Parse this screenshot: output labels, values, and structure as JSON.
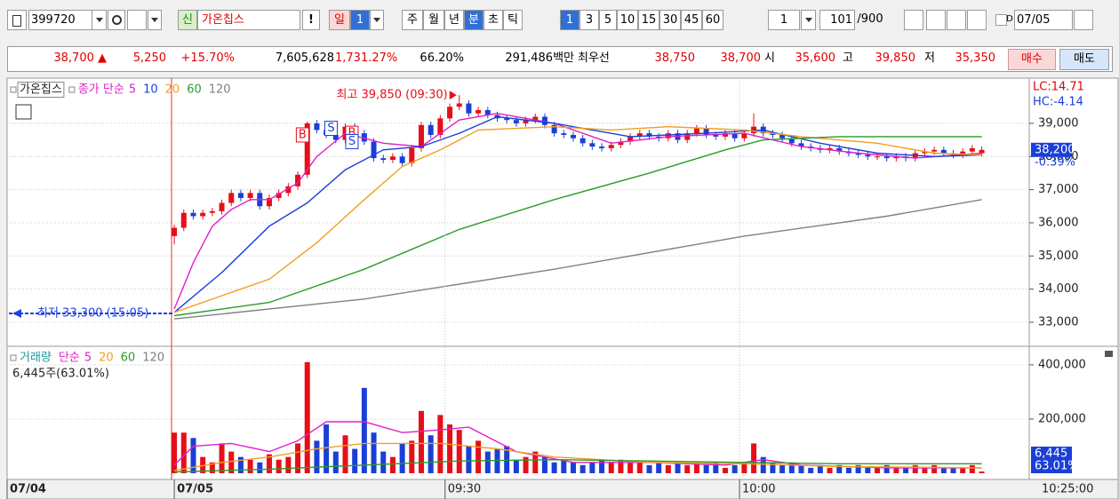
{
  "toolbar": {
    "code": "399720",
    "name_badge": "신",
    "name": "가온칩스",
    "alert": "!",
    "day": "일",
    "day_count": "1",
    "week": "주",
    "month": "월",
    "year": "년",
    "minute": "분",
    "second": "초",
    "tick": "틱",
    "minutes": [
      "1",
      "3",
      "5",
      "10",
      "15",
      "30",
      "45",
      "60"
    ],
    "count": "1",
    "shown": "101",
    "total": "/900",
    "date_flag": "D",
    "date": "07/05"
  },
  "info_bar": {
    "price": "38,700 ▲",
    "change": "5,250",
    "rate": "+15.70%",
    "volume": "7,605,628",
    "volume_rate": "1,731.27%",
    "turnover": "66.20%",
    "amount": "291,486백만",
    "best_label": "최우선",
    "ask": "38,750",
    "bid": "38,700",
    "open_label": "시",
    "open": "35,600",
    "high_label": "고",
    "high": "39,850",
    "low_label": "저",
    "low": "35,350",
    "buy": "매수",
    "sell": "매도"
  },
  "chart_data": [
    {
      "type": "candlestick",
      "title": "가온칩스",
      "legend_title": "종가 단순",
      "up_color": "#e60f19",
      "down_color": "#1a3fd6",
      "open": [
        35600,
        35850,
        36300,
        36200,
        36300,
        36350,
        36600,
        36900,
        36750,
        36900,
        36500,
        36750,
        36900,
        37100,
        37450,
        39000,
        38800,
        38650,
        38500,
        38900,
        38700,
        38450,
        37950,
        37900,
        38000,
        37800,
        38250,
        38950,
        38650,
        39150,
        39500,
        39600,
        39300,
        39400,
        39250,
        39150,
        39100,
        39000,
        39100,
        39200,
        38950,
        38700,
        38650,
        38550,
        38400,
        38300,
        38250,
        38350,
        38450,
        38600,
        38700,
        38600,
        38550,
        38700,
        38500,
        38700,
        38850,
        38650,
        38600,
        38700,
        38550,
        38700,
        38900,
        38700,
        38650,
        38550,
        38400,
        38300,
        38250,
        38200,
        38250,
        38150,
        38100,
        38050,
        38000,
        38000,
        37950,
        38000,
        37950,
        38100,
        38150,
        38200,
        38100,
        38050,
        38150,
        38100
      ],
      "high": [
        35950,
        36400,
        36400,
        36400,
        36450,
        36700,
        37000,
        37000,
        37000,
        37000,
        36850,
        37000,
        37200,
        37550,
        39050,
        39100,
        38900,
        38750,
        39000,
        39000,
        38800,
        38550,
        38050,
        38100,
        38100,
        38350,
        39050,
        39050,
        39250,
        39600,
        39850,
        39700,
        39500,
        39500,
        39350,
        39250,
        39200,
        39200,
        39300,
        39300,
        39050,
        38800,
        38750,
        38650,
        38500,
        38400,
        38450,
        38550,
        38700,
        38800,
        38800,
        38700,
        38800,
        38800,
        38800,
        38950,
        38950,
        38750,
        38800,
        38800,
        38800,
        39300,
        39000,
        38800,
        38750,
        38650,
        38500,
        38400,
        38350,
        38350,
        38350,
        38250,
        38200,
        38150,
        38100,
        38100,
        38100,
        38100,
        38200,
        38250,
        38300,
        38300,
        38200,
        38250,
        38350,
        38300
      ],
      "low": [
        35350,
        35750,
        36100,
        36100,
        36200,
        36250,
        36500,
        36650,
        36650,
        36400,
        36400,
        36650,
        36800,
        37000,
        37350,
        38700,
        38550,
        38400,
        38400,
        38600,
        38350,
        37850,
        37800,
        37800,
        37700,
        37700,
        38150,
        38550,
        38550,
        39050,
        39400,
        39200,
        39200,
        39150,
        39050,
        39000,
        38900,
        38900,
        39000,
        38850,
        38600,
        38550,
        38450,
        38300,
        38200,
        38150,
        38150,
        38250,
        38350,
        38500,
        38500,
        38450,
        38450,
        38400,
        38400,
        38600,
        38550,
        38500,
        38500,
        38450,
        38450,
        38600,
        38600,
        38550,
        38450,
        38300,
        38200,
        38150,
        38100,
        38100,
        38050,
        38000,
        37950,
        37900,
        37900,
        37850,
        37850,
        37850,
        37850,
        38000,
        38050,
        38000,
        37950,
        37950,
        38050,
        38000
      ],
      "close": [
        35850,
        36300,
        36200,
        36300,
        36350,
        36600,
        36900,
        36750,
        36900,
        36500,
        36750,
        36900,
        37100,
        37450,
        39000,
        38800,
        38650,
        38500,
        38900,
        38700,
        38450,
        37950,
        37900,
        38000,
        37800,
        38250,
        38950,
        38650,
        39150,
        39500,
        39600,
        39300,
        39400,
        39250,
        39150,
        39100,
        39000,
        39100,
        39200,
        38950,
        38700,
        38650,
        38550,
        38400,
        38300,
        38250,
        38350,
        38450,
        38600,
        38700,
        38600,
        38550,
        38700,
        38500,
        38700,
        38850,
        38650,
        38600,
        38700,
        38550,
        38700,
        38900,
        38700,
        38650,
        38550,
        38400,
        38300,
        38250,
        38200,
        38250,
        38150,
        38100,
        38050,
        38000,
        38000,
        37950,
        38000,
        37950,
        38100,
        38150,
        38200,
        38100,
        38050,
        38150,
        38250,
        38200
      ],
      "xlim": [
        -17.6,
        90
      ],
      "ylim": [
        32330,
        40310
      ],
      "yticks": [
        {
          "value": 33000,
          "label": "33,000"
        },
        {
          "value": 34000,
          "label": "34,000"
        },
        {
          "value": 35000,
          "label": "35,000"
        },
        {
          "value": 36000,
          "label": "36,000"
        },
        {
          "value": 37000,
          "label": "37,000"
        },
        {
          "value": 38000,
          "label": "38,000"
        },
        {
          "value": 39000,
          "label": "39,000"
        }
      ],
      "series": [
        {
          "name": "5",
          "color": "#e020c8",
          "x": [
            0,
            2,
            4,
            6,
            8,
            10,
            13,
            15,
            18,
            22,
            26,
            30,
            34,
            40,
            46,
            52,
            60,
            66,
            72,
            78,
            85
          ],
          "values": [
            33400,
            34800,
            35900,
            36400,
            36700,
            36700,
            37200,
            38000,
            38700,
            38400,
            38300,
            39100,
            39300,
            39000,
            38400,
            38600,
            38700,
            38300,
            38100,
            37950,
            38100
          ]
        },
        {
          "name": "10",
          "color": "#1a3fd6",
          "x": [
            0,
            5,
            10,
            14,
            18,
            22,
            26,
            30,
            34,
            40,
            48,
            56,
            62,
            68,
            74,
            80,
            85
          ],
          "values": [
            33300,
            34500,
            35900,
            36600,
            37600,
            38200,
            38300,
            38700,
            39200,
            39000,
            38600,
            38700,
            38800,
            38400,
            38100,
            38000,
            38050
          ]
        },
        {
          "name": "20",
          "color": "#f0a020",
          "x": [
            0,
            5,
            10,
            15,
            20,
            24,
            28,
            32,
            40,
            46,
            52,
            60,
            66,
            74,
            80,
            85
          ],
          "values": [
            33300,
            33800,
            34300,
            35400,
            36700,
            37700,
            38200,
            38800,
            38900,
            38800,
            38900,
            38800,
            38600,
            38400,
            38100,
            38050
          ]
        },
        {
          "name": "60",
          "color": "#2a9a2a",
          "x": [
            0,
            10,
            20,
            30,
            40,
            50,
            58,
            62,
            70,
            85
          ],
          "values": [
            33200,
            33600,
            34600,
            35800,
            36700,
            37500,
            38200,
            38500,
            38600,
            38600
          ]
        },
        {
          "name": "120",
          "color": "#808080",
          "x": [
            0,
            20,
            40,
            60,
            75,
            85
          ],
          "values": [
            33100,
            33700,
            34600,
            35600,
            36200,
            36700
          ]
        }
      ],
      "signals": [
        {
          "label": "B",
          "x": 13.5,
          "y": 38650
        },
        {
          "label": "S",
          "x": 16.5,
          "y": 38850
        },
        {
          "label": "B",
          "x": 18.7,
          "y": 38700
        },
        {
          "label": "S",
          "x": 18.7,
          "y": 38450
        }
      ],
      "annotations": {
        "high": "최고 39,850 (09:30)",
        "low": "최저 33,300 (15:05)"
      },
      "last_label": "38,200",
      "last_change": "-0.39%",
      "lc": "LC:14.71",
      "hc": "HC:-4.14"
    },
    {
      "type": "bar",
      "title": "거래량",
      "title_color": "#1a9a9a",
      "legend_title": "단순",
      "legend_more": [
        {
          "name": "120",
          "color": "#808080"
        }
      ],
      "subtitle": "6,445주(63.01%)",
      "values": [
        150000,
        150000,
        130000,
        60000,
        40000,
        110000,
        80000,
        60000,
        50000,
        40000,
        70000,
        50000,
        60000,
        110000,
        410000,
        120000,
        180000,
        80000,
        140000,
        90000,
        315000,
        150000,
        80000,
        60000,
        110000,
        120000,
        230000,
        140000,
        215000,
        180000,
        160000,
        100000,
        120000,
        80000,
        90000,
        100000,
        50000,
        60000,
        80000,
        60000,
        40000,
        50000,
        40000,
        30000,
        40000,
        50000,
        40000,
        50000,
        40000,
        40000,
        30000,
        40000,
        30000,
        40000,
        30000,
        40000,
        30000,
        40000,
        20000,
        30000,
        40000,
        110000,
        60000,
        40000,
        30000,
        40000,
        30000,
        20000,
        30000,
        20000,
        30000,
        20000,
        30000,
        20000,
        20000,
        30000,
        20000,
        20000,
        30000,
        20000,
        30000,
        20000,
        20000,
        20000,
        30000,
        6445
      ],
      "xlim": [
        -17.6,
        90
      ],
      "ylim": [
        -23000,
        462000
      ],
      "xticks": [
        {
          "value": -17.6,
          "label": "07/04"
        },
        {
          "value": 0,
          "label": "07/05"
        },
        {
          "value": 28.5,
          "label": "09:30"
        },
        {
          "value": 59.5,
          "label": "10:00"
        }
      ],
      "yticks": [
        {
          "value": 200000,
          "label": "200,000"
        },
        {
          "value": 400000,
          "label": "400,000"
        }
      ],
      "series": [
        {
          "name": "5",
          "color": "#e020c8",
          "x": [
            0,
            2,
            6,
            10,
            13,
            16,
            20,
            24,
            28,
            31,
            36,
            42,
            50,
            58,
            62,
            66,
            75,
            85
          ],
          "values": [
            30000,
            100000,
            110000,
            80000,
            120000,
            190000,
            190000,
            150000,
            160000,
            170000,
            80000,
            40000,
            40000,
            30000,
            50000,
            30000,
            20000,
            20000
          ]
        },
        {
          "name": "20",
          "color": "#f0a020",
          "x": [
            0,
            5,
            10,
            15,
            20,
            28,
            34,
            40,
            50,
            60,
            70,
            85
          ],
          "values": [
            10000,
            40000,
            60000,
            90000,
            110000,
            110000,
            90000,
            60000,
            40000,
            35000,
            25000,
            20000
          ]
        },
        {
          "name": "60",
          "color": "#2a9a2a",
          "x": [
            0,
            10,
            20,
            30,
            40,
            50,
            60,
            70,
            85
          ],
          "values": [
            5000,
            15000,
            30000,
            45000,
            50000,
            45000,
            40000,
            35000,
            35000
          ]
        }
      ],
      "last_label": "6,445",
      "last_ratio": "63.01%",
      "time_label": "10:25:00"
    }
  ]
}
